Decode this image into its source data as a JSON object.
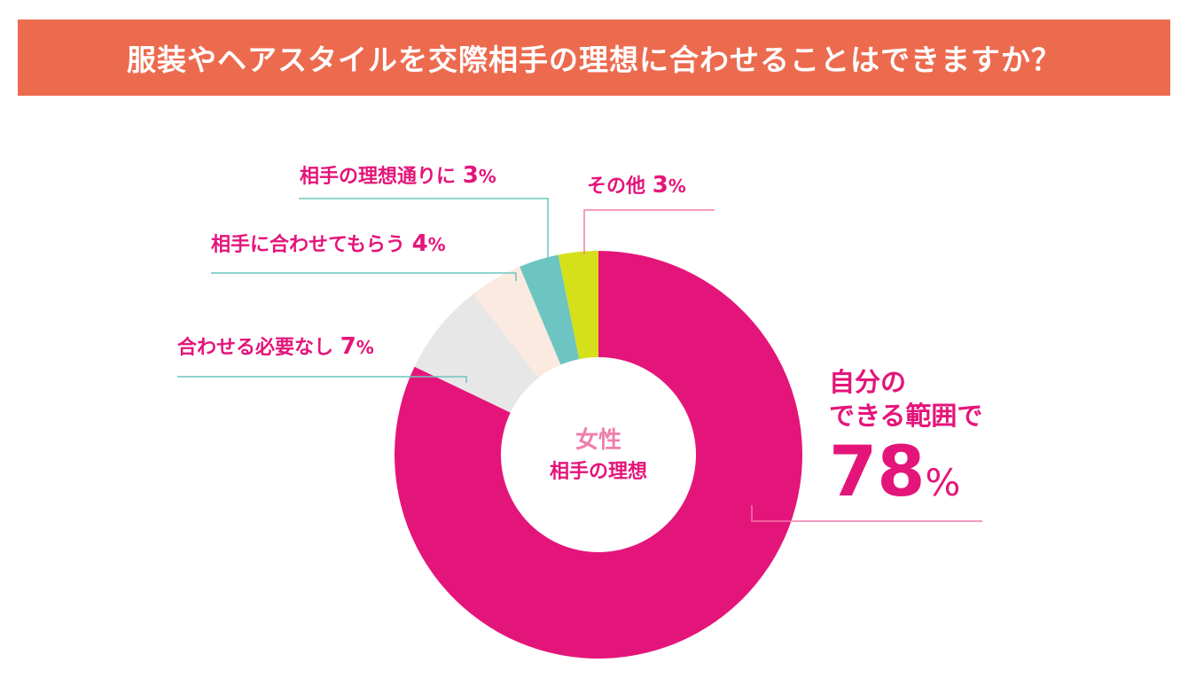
{
  "title": "服装やヘアスタイルを交際相手の理想に合わせることはできますか？",
  "center": {
    "line1": "女性",
    "line2": "相手の理想"
  },
  "colors": {
    "header": "#ec6b4f",
    "accent": "#e4157a",
    "teal": "#6cc5c1",
    "lime": "#d6e01a",
    "light_pink": "#fbeae0",
    "light_gray": "#e7e7e7",
    "pink_line": "#f07aab"
  },
  "labels": {
    "main": {
      "line1": "自分の",
      "line2": "できる範囲で",
      "value": "78",
      "unit": "%"
    },
    "notneeded": {
      "text": "合わせる必要なし",
      "value": "7",
      "unit": "%"
    },
    "fitme": {
      "text": "相手に合わせてもらう",
      "value": "4",
      "unit": "%"
    },
    "ideal": {
      "text": "相手の理想通りに",
      "value": "3",
      "unit": "%"
    },
    "other": {
      "text": "その他",
      "value": "3",
      "unit": "%"
    }
  },
  "chart_data": {
    "type": "pie",
    "title": "服装やヘアスタイルを交際相手の理想に合わせることはできますか？",
    "categories": [
      "自分のできる範囲で",
      "合わせる必要なし",
      "相手に合わせてもらう",
      "相手の理想通りに",
      "その他"
    ],
    "values": [
      78,
      7,
      4,
      3,
      3
    ],
    "unit": "%",
    "colors": [
      "#e4157a",
      "#e7e7e7",
      "#fbeae0",
      "#6cc5c1",
      "#d6e01a"
    ],
    "donut": true
  }
}
